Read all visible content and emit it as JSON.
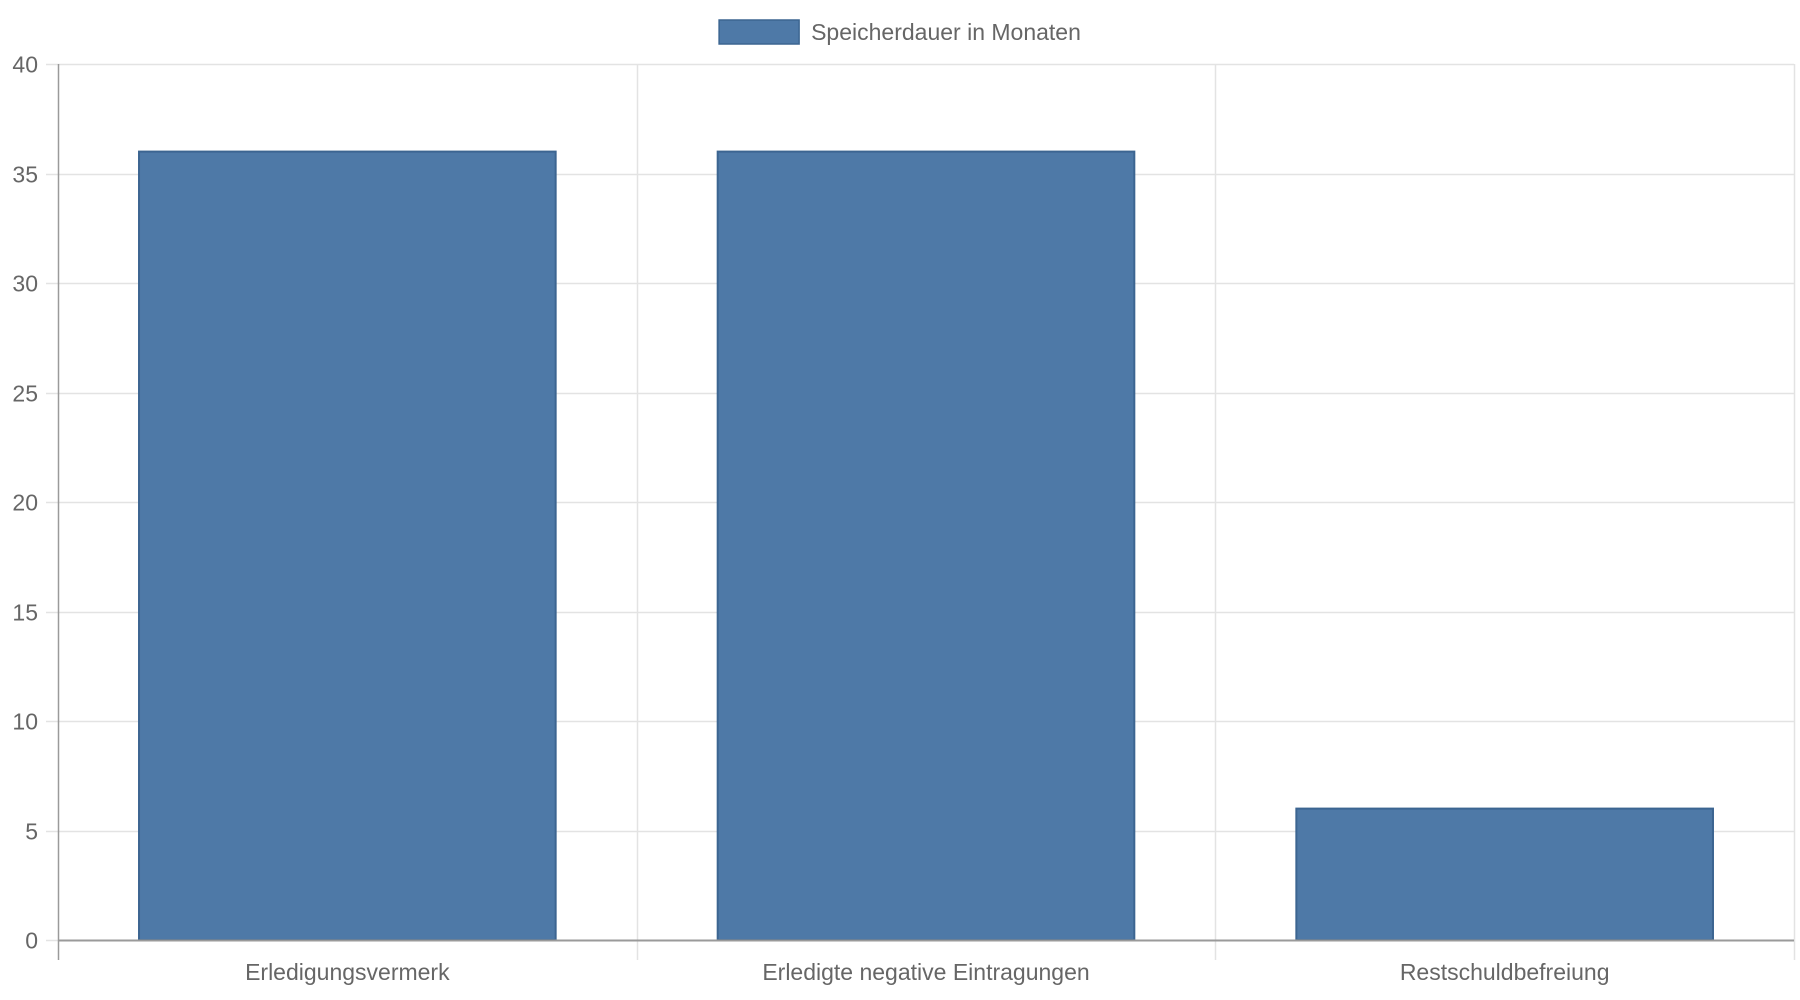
{
  "chart_data": {
    "type": "bar",
    "categories": [
      "Erledigungsvermerk",
      "Erledigte negative Eintragungen",
      "Restschuldbefreiung"
    ],
    "series": [
      {
        "name": "Speicherdauer in Monaten",
        "values": [
          36,
          36,
          6
        ],
        "color": "#4e79a7"
      }
    ],
    "title": "",
    "xlabel": "",
    "ylabel": "",
    "ylim": [
      0,
      40
    ],
    "yticks": [
      0,
      5,
      10,
      15,
      20,
      25,
      30,
      35,
      40
    ],
    "grid": true,
    "legend_position": "top-center"
  },
  "colors": {
    "bar": "#4e79a7",
    "bar_border": "#3c6591",
    "grid": "#e3e3e3",
    "axis": "#9a9a9a",
    "text": "#666666"
  }
}
